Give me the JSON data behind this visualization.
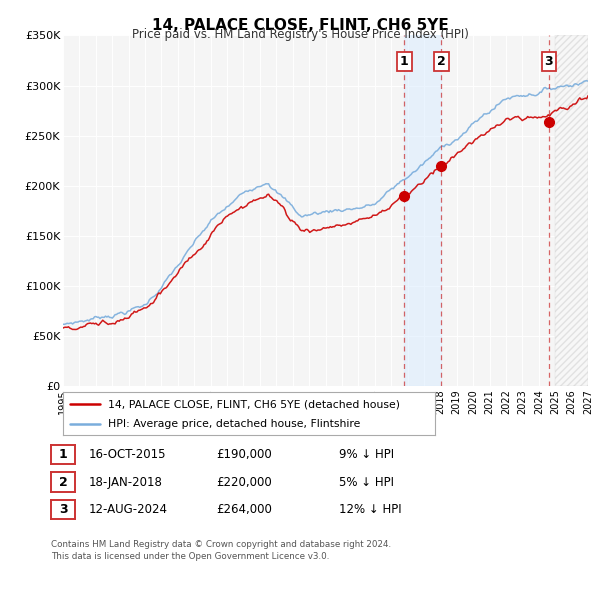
{
  "title": "14, PALACE CLOSE, FLINT, CH6 5YE",
  "subtitle": "Price paid vs. HM Land Registry's House Price Index (HPI)",
  "xlim": [
    1995.0,
    2027.0
  ],
  "ylim": [
    0,
    350000
  ],
  "yticks": [
    0,
    50000,
    100000,
    150000,
    200000,
    250000,
    300000,
    350000
  ],
  "ytick_labels": [
    "£0",
    "£50K",
    "£100K",
    "£150K",
    "£200K",
    "£250K",
    "£300K",
    "£350K"
  ],
  "house_color": "#cc0000",
  "hpi_color": "#7aaddc",
  "sale_dates": [
    2015.79,
    2018.05,
    2024.62
  ],
  "sale_prices": [
    190000,
    220000,
    264000
  ],
  "sale_labels": [
    "1",
    "2",
    "3"
  ],
  "shaded_start": 2015.79,
  "shaded_end": 2018.05,
  "future_start": 2025.0,
  "legend_house": "14, PALACE CLOSE, FLINT, CH6 5YE (detached house)",
  "legend_hpi": "HPI: Average price, detached house, Flintshire",
  "table_data": [
    [
      "1",
      "16-OCT-2015",
      "£190,000",
      "9% ↓ HPI"
    ],
    [
      "2",
      "18-JAN-2018",
      "£220,000",
      "5% ↓ HPI"
    ],
    [
      "3",
      "12-AUG-2024",
      "£264,000",
      "12% ↓ HPI"
    ]
  ],
  "footer": "Contains HM Land Registry data © Crown copyright and database right 2024.\nThis data is licensed under the Open Government Licence v3.0.",
  "bg_color": "#f5f5f5"
}
